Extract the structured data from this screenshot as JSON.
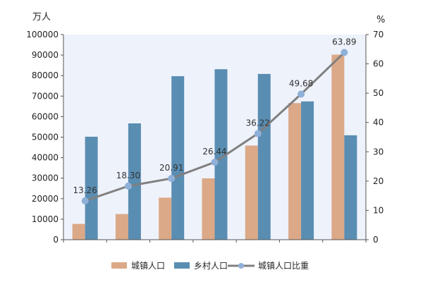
{
  "chart_data": {
    "type": "bar",
    "categories": [
      "",
      "",
      "",
      "",
      "",
      "",
      ""
    ],
    "left_unit": "万人",
    "right_unit": "%",
    "y_left": {
      "min": 0,
      "max": 100000,
      "step": 10000,
      "ticks": [
        "0",
        "10000",
        "20000",
        "30000",
        "40000",
        "50000",
        "60000",
        "70000",
        "80000",
        "90000",
        "100000"
      ]
    },
    "y_right": {
      "min": 0,
      "max": 70,
      "step": 10,
      "ticks": [
        "0",
        "10",
        "20",
        "30",
        "40",
        "50",
        "60",
        "70"
      ]
    },
    "series": [
      {
        "name": "城镇人口",
        "kind": "bar",
        "axis": "left",
        "color": "#dba987",
        "values": [
          7700,
          12500,
          20500,
          29900,
          45900,
          66600,
          90200
        ]
      },
      {
        "name": "乡村人口",
        "kind": "bar",
        "axis": "left",
        "color": "#5a8db2",
        "values": [
          50200,
          56700,
          79700,
          83100,
          80800,
          67400,
          50900
        ]
      },
      {
        "name": "城镇人口比重",
        "kind": "line",
        "axis": "right",
        "color": "#808080",
        "marker_color": "#8fb0d9",
        "values": [
          13.26,
          18.3,
          20.91,
          26.44,
          36.22,
          49.68,
          63.89
        ],
        "labels": [
          "13.26",
          "18.30",
          "20.91",
          "26.44",
          "36.22",
          "49.68",
          "63.89"
        ]
      }
    ],
    "grid": false,
    "legend_position": "bottom"
  },
  "colors": {
    "plot_bg": "#eef2fb",
    "axis": "#555555"
  }
}
